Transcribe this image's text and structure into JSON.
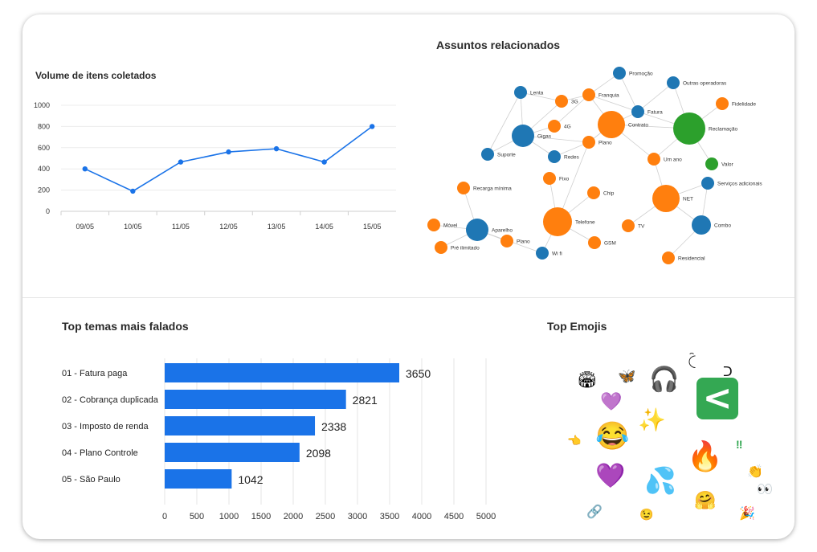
{
  "line_panel": {
    "title": "Volume de itens coletados"
  },
  "network_panel": {
    "title": "Assuntos relacionados"
  },
  "bars_panel": {
    "title": "Top temas mais falados"
  },
  "emoji_panel": {
    "title": "Top Emojis",
    "emojis": [
      {
        "name": "stadium-emoji",
        "glyph": "🏟"
      },
      {
        "name": "butterfly-emoji",
        "glyph": "🦋"
      },
      {
        "name": "headphones-emoji",
        "glyph": "🎧"
      },
      {
        "name": "mu-symbol-emoji",
        "glyph": "ꉓ"
      },
      {
        "name": "cup-symbol-emoji",
        "glyph": "ᑐ"
      },
      {
        "name": "purple-heart-outline-emoji",
        "glyph": "💜"
      },
      {
        "name": "sparkles-emoji",
        "glyph": "✨"
      },
      {
        "name": "back-arrow-button-emoji",
        "glyph": "<"
      },
      {
        "name": "pointing-hand-emoji",
        "glyph": "👈"
      },
      {
        "name": "crying-laughing-emoji",
        "glyph": "😂"
      },
      {
        "name": "double-exclamation-emoji",
        "glyph": "‼"
      },
      {
        "name": "fire-emoji",
        "glyph": "🔥"
      },
      {
        "name": "clapping-hands-emoji",
        "glyph": "👏"
      },
      {
        "name": "purple-heart-emoji",
        "glyph": "💜"
      },
      {
        "name": "sweat-droplets-emoji",
        "glyph": "💦"
      },
      {
        "name": "hugging-face-emoji",
        "glyph": "🤗"
      },
      {
        "name": "eyes-emoji",
        "glyph": "👀"
      },
      {
        "name": "link-emoji",
        "glyph": "🔗"
      },
      {
        "name": "wink-face-emoji",
        "glyph": "😉"
      },
      {
        "name": "party-popper-emoji",
        "glyph": "🎉"
      }
    ]
  },
  "colors": {
    "blue": "#1f77b4",
    "orange": "#ff7f0e",
    "green": "#2ca02c",
    "bar": "#1a73e8",
    "line": "#1a73e8"
  },
  "chart_data": [
    {
      "type": "line",
      "title": "Volume de itens coletados",
      "categories": [
        "09/05",
        "10/05",
        "11/05",
        "12/05",
        "13/05",
        "14/05",
        "15/05"
      ],
      "values": [
        400,
        190,
        465,
        560,
        590,
        465,
        800
      ],
      "ylim": [
        0,
        1000
      ],
      "yticks": [
        "0",
        "200",
        "400",
        "600",
        "800",
        "1000"
      ],
      "grid": true
    },
    {
      "type": "bar",
      "title": "Top temas mais falados",
      "orientation": "horizontal",
      "categories": [
        "01  - Fatura paga",
        "02  - Cobrança duplicada",
        "03  - Imposto de renda",
        "04  - Plano Controle",
        "05  - São Paulo"
      ],
      "values": [
        3650,
        2821,
        2338,
        2098,
        1042
      ],
      "value_labels": [
        "3650",
        "2821",
        "2338",
        "2098",
        "1042"
      ],
      "xlim": [
        0,
        5000
      ],
      "xticks": [
        "0",
        "500",
        "1000",
        "1500",
        "2000",
        "2500",
        "3000",
        "3500",
        "4000",
        "4500",
        "5000"
      ],
      "grid": true
    }
  ],
  "network": {
    "title": "Assuntos relacionados",
    "nodes": [
      {
        "id": "Lenta",
        "color": "blue",
        "size": "s"
      },
      {
        "id": "3G",
        "color": "orange",
        "size": "s"
      },
      {
        "id": "Franquia",
        "color": "orange",
        "size": "s"
      },
      {
        "id": "Promoção",
        "color": "blue",
        "size": "s"
      },
      {
        "id": "Outras operadoras",
        "color": "blue",
        "size": "s"
      },
      {
        "id": "Fidelidade",
        "color": "orange",
        "size": "s"
      },
      {
        "id": "4G",
        "color": "orange",
        "size": "s"
      },
      {
        "id": "Fatura",
        "color": "blue",
        "size": "s"
      },
      {
        "id": "Contrato",
        "color": "orange",
        "size": "l"
      },
      {
        "id": "Reclamação",
        "color": "green",
        "size": "l"
      },
      {
        "id": "Gigas",
        "color": "blue",
        "size": "m"
      },
      {
        "id": "Plano",
        "color": "orange",
        "size": "s"
      },
      {
        "id": "Suporte",
        "color": "blue",
        "size": "s"
      },
      {
        "id": "Redes",
        "color": "blue",
        "size": "s"
      },
      {
        "id": "Um ano",
        "color": "orange",
        "size": "s"
      },
      {
        "id": "Valor",
        "color": "green",
        "size": "s"
      },
      {
        "id": "Fixo",
        "color": "orange",
        "size": "s"
      },
      {
        "id": "Serviços adicionais",
        "color": "blue",
        "size": "s"
      },
      {
        "id": "Recarga mínima",
        "color": "orange",
        "size": "s"
      },
      {
        "id": "Chip",
        "color": "orange",
        "size": "s"
      },
      {
        "id": "NET",
        "color": "orange",
        "size": "l"
      },
      {
        "id": "Móvel",
        "color": "orange",
        "size": "s"
      },
      {
        "id": "Aparelho",
        "color": "blue",
        "size": "m"
      },
      {
        "id": "Telefone",
        "color": "orange",
        "size": "l"
      },
      {
        "id": "TV",
        "color": "orange",
        "size": "s"
      },
      {
        "id": "Combo",
        "color": "blue",
        "size": "m"
      },
      {
        "id": "Pré ilimitado",
        "color": "orange",
        "size": "s"
      },
      {
        "id": "Plano ",
        "color": "orange",
        "size": "s"
      },
      {
        "id": "GSM",
        "color": "orange",
        "size": "s"
      },
      {
        "id": "Wi fi",
        "color": "blue",
        "size": "s"
      },
      {
        "id": "Residencial",
        "color": "orange",
        "size": "s"
      }
    ],
    "edges": [
      [
        "Lenta",
        "Gigas"
      ],
      [
        "Lenta",
        "3G"
      ],
      [
        "Lenta",
        "Suporte"
      ],
      [
        "3G",
        "Gigas"
      ],
      [
        "3G",
        "Franquia"
      ],
      [
        "Franquia",
        "Promoção"
      ],
      [
        "Franquia",
        "Contrato"
      ],
      [
        "Franquia",
        "Fatura"
      ],
      [
        "Promoção",
        "Fatura"
      ],
      [
        "Outras operadoras",
        "Reclamação"
      ],
      [
        "Outras operadoras",
        "Fatura"
      ],
      [
        "Fidelidade",
        "Reclamação"
      ],
      [
        "4G",
        "Gigas"
      ],
      [
        "4G",
        "Franquia"
      ],
      [
        "Fatura",
        "Contrato"
      ],
      [
        "Fatura",
        "Reclamação"
      ],
      [
        "Contrato",
        "Reclamação"
      ],
      [
        "Contrato",
        "Plano"
      ],
      [
        "Contrato",
        "Um ano"
      ],
      [
        "Reclamação",
        "Valor"
      ],
      [
        "Reclamação",
        "Um ano"
      ],
      [
        "Gigas",
        "Suporte"
      ],
      [
        "Gigas",
        "Redes"
      ],
      [
        "Gigas",
        "Plano"
      ],
      [
        "Redes",
        "Plano"
      ],
      [
        "Fixo",
        "Telefone"
      ],
      [
        "Chip",
        "Telefone"
      ],
      [
        "Telefone",
        "GSM"
      ],
      [
        "Telefone",
        "Wi fi"
      ],
      [
        "Telefone",
        "Plano"
      ],
      [
        "Recarga mínima",
        "Aparelho"
      ],
      [
        "Móvel",
        "Aparelho"
      ],
      [
        "Aparelho",
        "Pré ilimitado"
      ],
      [
        "Aparelho",
        "Plano "
      ],
      [
        "Aparelho",
        "Wi fi"
      ],
      [
        "NET",
        "TV"
      ],
      [
        "NET",
        "Combo"
      ],
      [
        "NET",
        "Serviços adicionais"
      ],
      [
        "NET",
        "Um ano"
      ],
      [
        "Combo",
        "Residencial"
      ],
      [
        "Combo",
        "Serviços adicionais"
      ]
    ]
  }
}
